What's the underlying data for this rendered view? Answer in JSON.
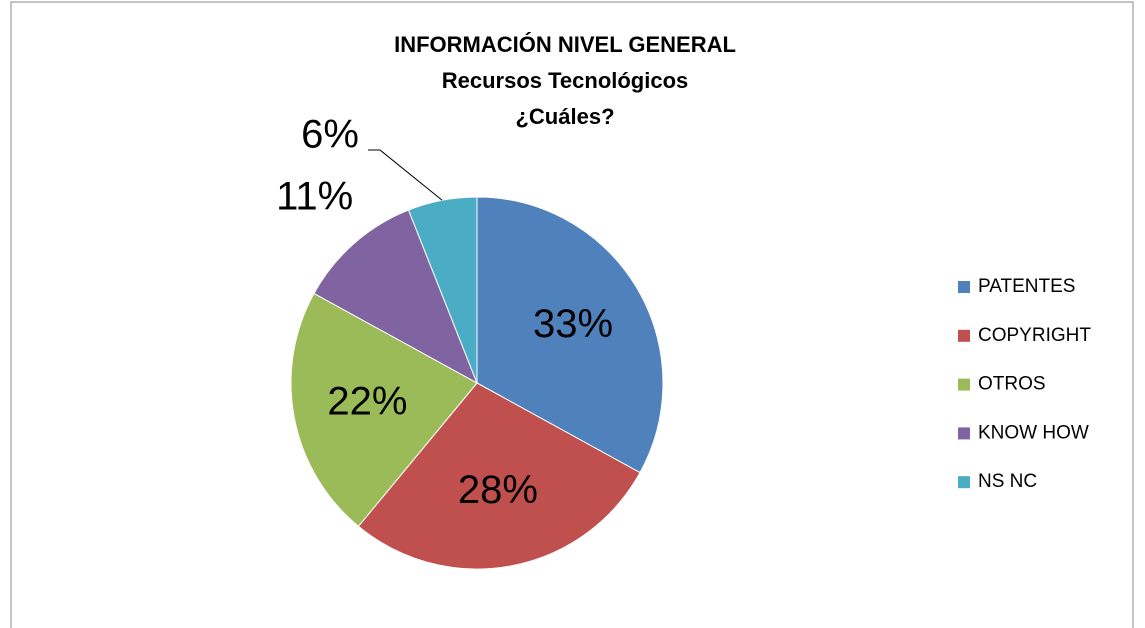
{
  "chart_data": {
    "type": "pie",
    "title": [
      "INFORMACIÓN  NIVEL GENERAL",
      "Recursos Tecnológicos",
      "¿Cuáles?"
    ],
    "categories": [
      "PATENTES",
      "COPYRIGHT",
      "OTROS",
      "KNOW HOW",
      "NS NC"
    ],
    "values": [
      33,
      28,
      22,
      11,
      6
    ],
    "value_labels": [
      "33%",
      "28%",
      "22%",
      "11%",
      "6%"
    ],
    "colors": [
      "#4f81bd",
      "#c0504d",
      "#9bbb59",
      "#8064a2",
      "#4bacc6"
    ],
    "legend": "right"
  }
}
